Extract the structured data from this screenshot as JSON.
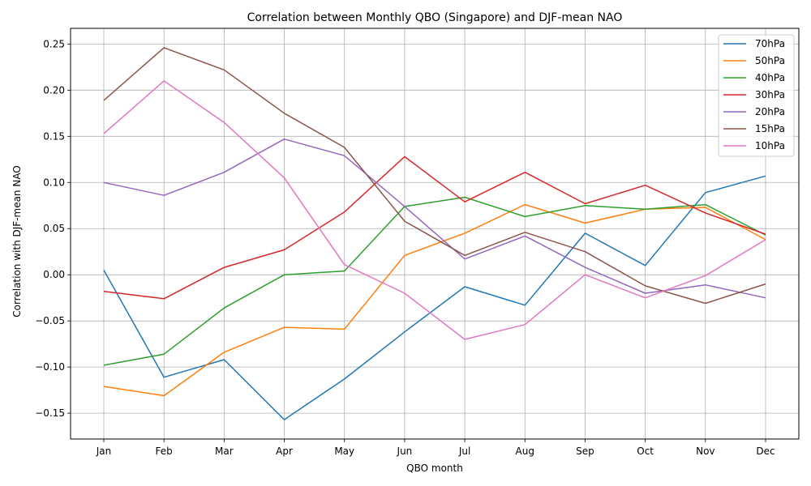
{
  "chart_data": {
    "type": "line",
    "title": "Correlation between Monthly QBO (Singapore) and DJF-mean NAO",
    "xlabel": "QBO month",
    "ylabel": "Correlation with DJF-mean NAO",
    "categories": [
      "Jan",
      "Feb",
      "Mar",
      "Apr",
      "May",
      "Jun",
      "Jul",
      "Aug",
      "Sep",
      "Oct",
      "Nov",
      "Dec"
    ],
    "ylim": [
      -0.178,
      0.267
    ],
    "yticks": [
      -0.15,
      -0.1,
      -0.05,
      0.0,
      0.05,
      0.1,
      0.15,
      0.2,
      0.25
    ],
    "ytick_labels": [
      "−0.15",
      "−0.10",
      "−0.05",
      "0.00",
      "0.05",
      "0.10",
      "0.15",
      "0.20",
      "0.25"
    ],
    "grid": true,
    "legend_position": "top-right",
    "series": [
      {
        "name": "70hPa",
        "color": "#1f77b4",
        "values": [
          0.005,
          -0.111,
          -0.092,
          -0.157,
          -0.113,
          -0.062,
          -0.013,
          -0.033,
          0.045,
          0.01,
          0.089,
          0.107
        ]
      },
      {
        "name": "50hPa",
        "color": "#ff7f0e",
        "values": [
          -0.121,
          -0.131,
          -0.084,
          -0.057,
          -0.059,
          0.021,
          0.045,
          0.076,
          0.056,
          0.071,
          0.073,
          0.038
        ]
      },
      {
        "name": "40hPa",
        "color": "#2ca02c",
        "values": [
          -0.098,
          -0.086,
          -0.036,
          0.0,
          0.004,
          0.074,
          0.084,
          0.063,
          0.075,
          0.071,
          0.076,
          0.043
        ]
      },
      {
        "name": "30hPa",
        "color": "#d62728",
        "values": [
          -0.018,
          -0.026,
          0.008,
          0.027,
          0.068,
          0.128,
          0.079,
          0.111,
          0.077,
          0.097,
          0.067,
          0.044
        ]
      },
      {
        "name": "20hPa",
        "color": "#9467bd",
        "values": [
          0.1,
          0.086,
          0.111,
          0.147,
          0.129,
          0.074,
          0.017,
          0.042,
          0.008,
          -0.02,
          -0.011,
          -0.025
        ]
      },
      {
        "name": "15hPa",
        "color": "#8c564b",
        "values": [
          0.189,
          0.246,
          0.222,
          0.175,
          0.138,
          0.058,
          0.021,
          0.046,
          0.025,
          -0.012,
          -0.031,
          -0.01
        ]
      },
      {
        "name": "10hPa",
        "color": "#e377c2",
        "values": [
          0.153,
          0.21,
          0.165,
          0.105,
          0.011,
          -0.02,
          -0.07,
          -0.054,
          0.0,
          -0.025,
          -0.001,
          0.038
        ]
      }
    ]
  }
}
